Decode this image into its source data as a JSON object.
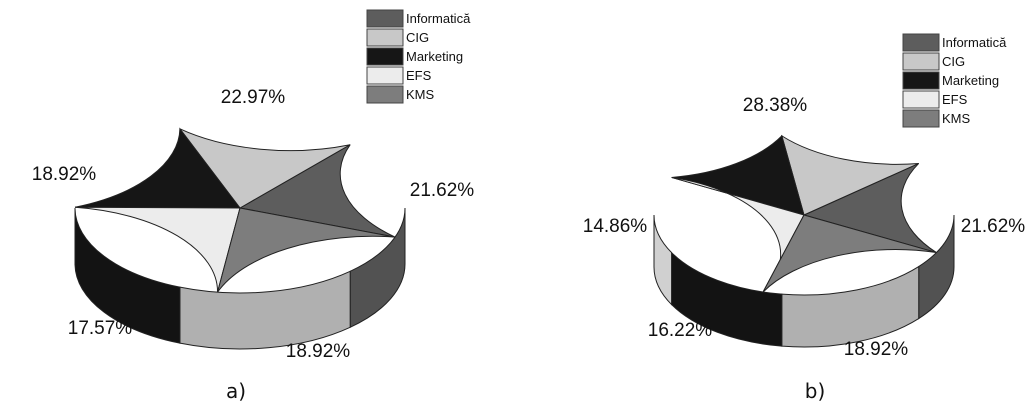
{
  "chart_data": [
    {
      "type": "pie",
      "style": "3d",
      "caption": "a)",
      "legend": {
        "placement": "top-right"
      },
      "categories": [
        "Informatică",
        "CIG",
        "Marketing",
        "EFS",
        "KMS"
      ],
      "values": [
        18.92,
        17.57,
        18.92,
        22.97,
        21.62
      ],
      "labels": [
        "18.92%",
        "17.57%",
        "18.92%",
        "22.97%",
        "21.62%"
      ]
    },
    {
      "type": "pie",
      "style": "3d",
      "caption": "b)",
      "legend": {
        "placement": "top-right"
      },
      "categories": [
        "Informatică",
        "CIG",
        "Marketing",
        "EFS",
        "KMS"
      ],
      "values": [
        18.92,
        16.22,
        14.86,
        28.38,
        21.62
      ],
      "labels": [
        "18.92%",
        "16.22%",
        "14.86%",
        "28.38%",
        "21.62%"
      ]
    }
  ],
  "colors": {
    "Informatică": "#5d5d5d",
    "CIG": "#c8c8c8",
    "Marketing": "#161616",
    "EFS": "#ececec",
    "KMS": "#7d7d7d"
  }
}
